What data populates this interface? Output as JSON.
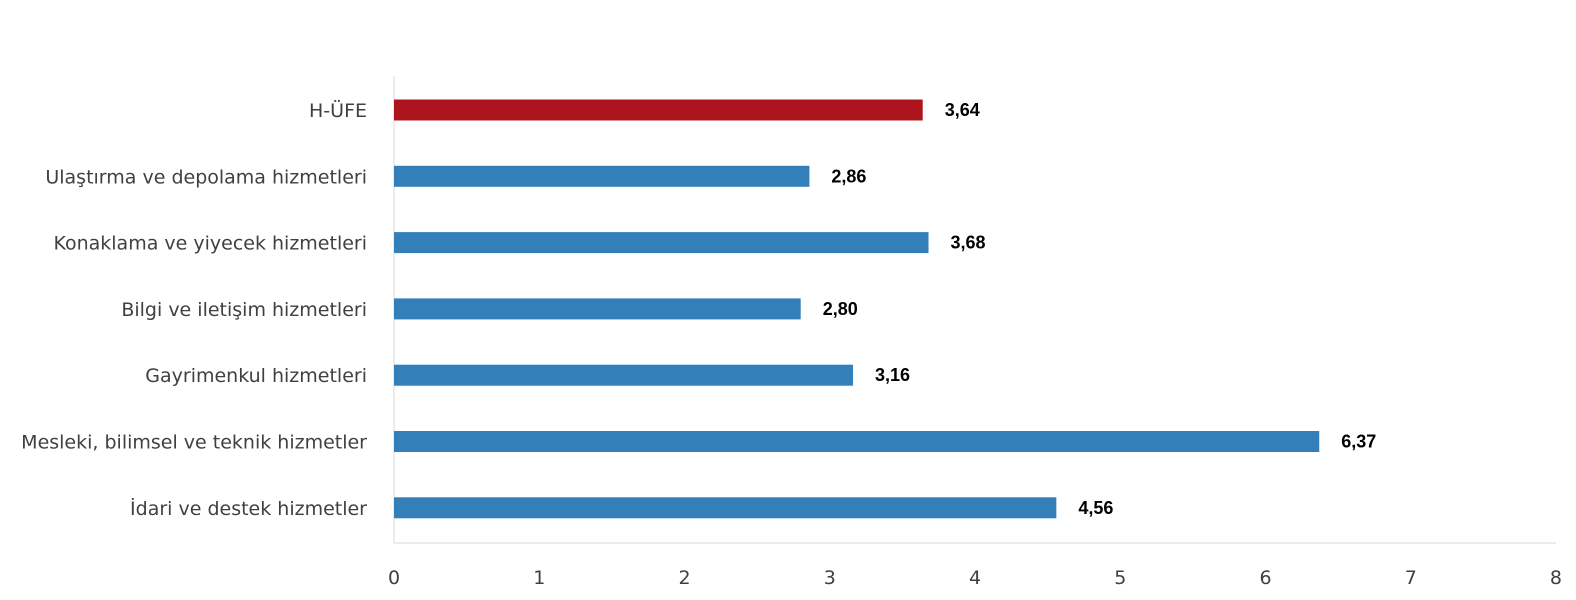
{
  "chart_data": {
    "type": "bar",
    "orientation": "horizontal",
    "categories": [
      "H-ÜFE",
      "Ulaştırma ve depolama hizmetleri",
      "Konaklama ve yiyecek hizmetleri",
      "Bilgi ve iletişim hizmetleri",
      "Gayrimenkul hizmetleri",
      "Mesleki, bilimsel ve teknik hizmetler",
      "İdari ve destek hizmetler"
    ],
    "values": [
      3.64,
      2.86,
      3.68,
      2.8,
      3.16,
      6.37,
      4.56
    ],
    "value_labels": [
      "3,64",
      "2,86",
      "3,68",
      "2,80",
      "3,16",
      "6,37",
      "4,56"
    ],
    "xticks": [
      "0",
      "1",
      "2",
      "3",
      "4",
      "5",
      "6",
      "7",
      "8"
    ],
    "xlim": [
      0,
      8
    ],
    "grid": false,
    "legend": "none",
    "colors": {
      "highlight": "#ad141e",
      "default": "#337fba"
    },
    "highlight_index": 0
  }
}
